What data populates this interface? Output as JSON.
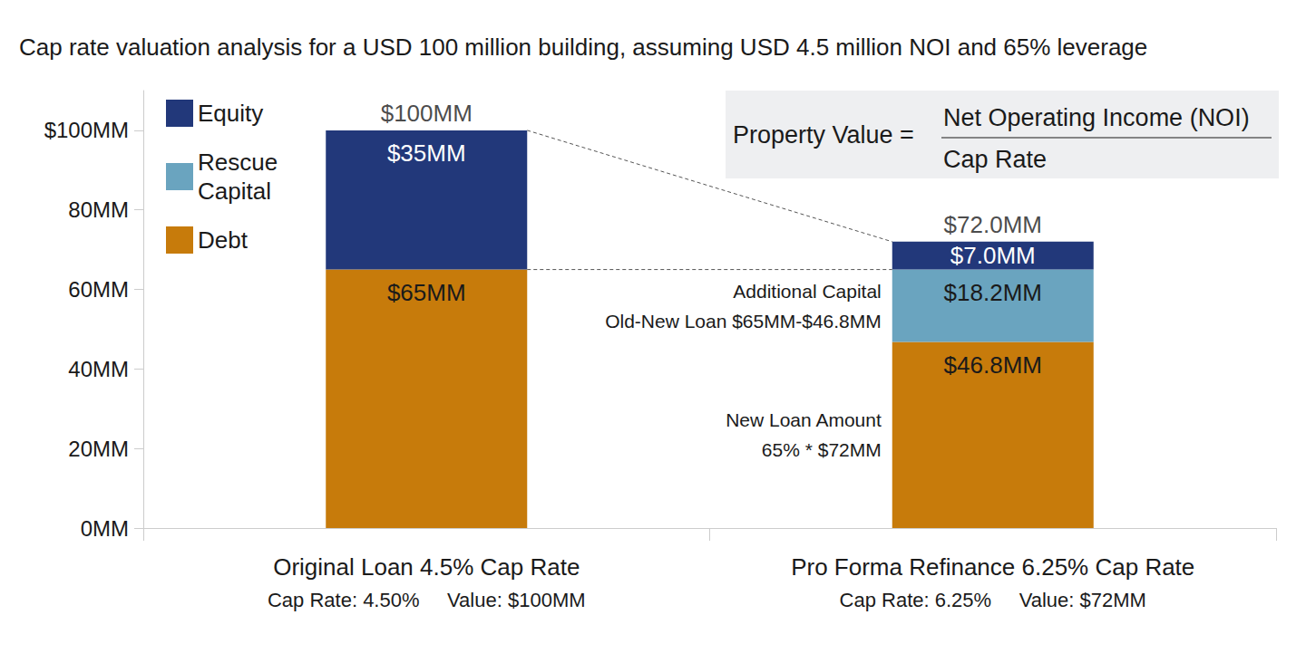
{
  "chart_data": {
    "type": "bar",
    "title": "Cap rate valuation analysis for a USD 100 million building, assuming USD 4.5 million NOI and 65% leverage",
    "categories": [
      "Original Loan 4.5% Cap Rate",
      "Pro Forma Refinance 6.25% Cap Rate"
    ],
    "category_sublabels": [
      "Cap Rate: 4.50%     Value: $100MM",
      "Cap Rate: 6.25%     Value: $72MM"
    ],
    "series": [
      {
        "name": "Equity",
        "color": "#22387a",
        "values": [
          35,
          7.0
        ],
        "value_labels": [
          "$35MM",
          "$7.0MM"
        ]
      },
      {
        "name": "Rescue Capital",
        "color": "#6aa4bf",
        "values": [
          null,
          18.2
        ],
        "value_labels": [
          null,
          "$18.2MM"
        ]
      },
      {
        "name": "Debt",
        "color": "#c77b0b",
        "values": [
          65,
          46.8
        ],
        "value_labels": [
          "$65MM",
          "$46.8MM"
        ]
      }
    ],
    "totals": {
      "values": [
        100,
        72.0
      ],
      "value_labels": [
        "$100MM",
        "$72.0MM"
      ]
    },
    "ylim": [
      0,
      110
    ],
    "yticks": [
      {
        "value": 0,
        "label": "0MM"
      },
      {
        "value": 20,
        "label": "20MM"
      },
      {
        "value": 40,
        "label": "40MM"
      },
      {
        "value": 60,
        "label": "60MM"
      },
      {
        "value": 80,
        "label": "80MM"
      },
      {
        "value": 100,
        "label": "$100MM"
      }
    ],
    "stacked": true,
    "data_labels": true,
    "grid": false,
    "legend": "top-left",
    "formula": {
      "left": "Property Value =",
      "numerator": "Net Operating Income (NOI)",
      "denominator": "Cap Rate"
    },
    "annotations": [
      {
        "series": "Rescue Capital",
        "category": "Pro Forma Refinance 6.25% Cap Rate",
        "lines": [
          "Additional Capital",
          "Old-New Loan $65MM-$46.8MM"
        ]
      },
      {
        "series": "Debt",
        "category": "Pro Forma Refinance 6.25% Cap Rate",
        "lines": [
          "New Loan Amount",
          "65% * $72MM"
        ]
      }
    ]
  }
}
